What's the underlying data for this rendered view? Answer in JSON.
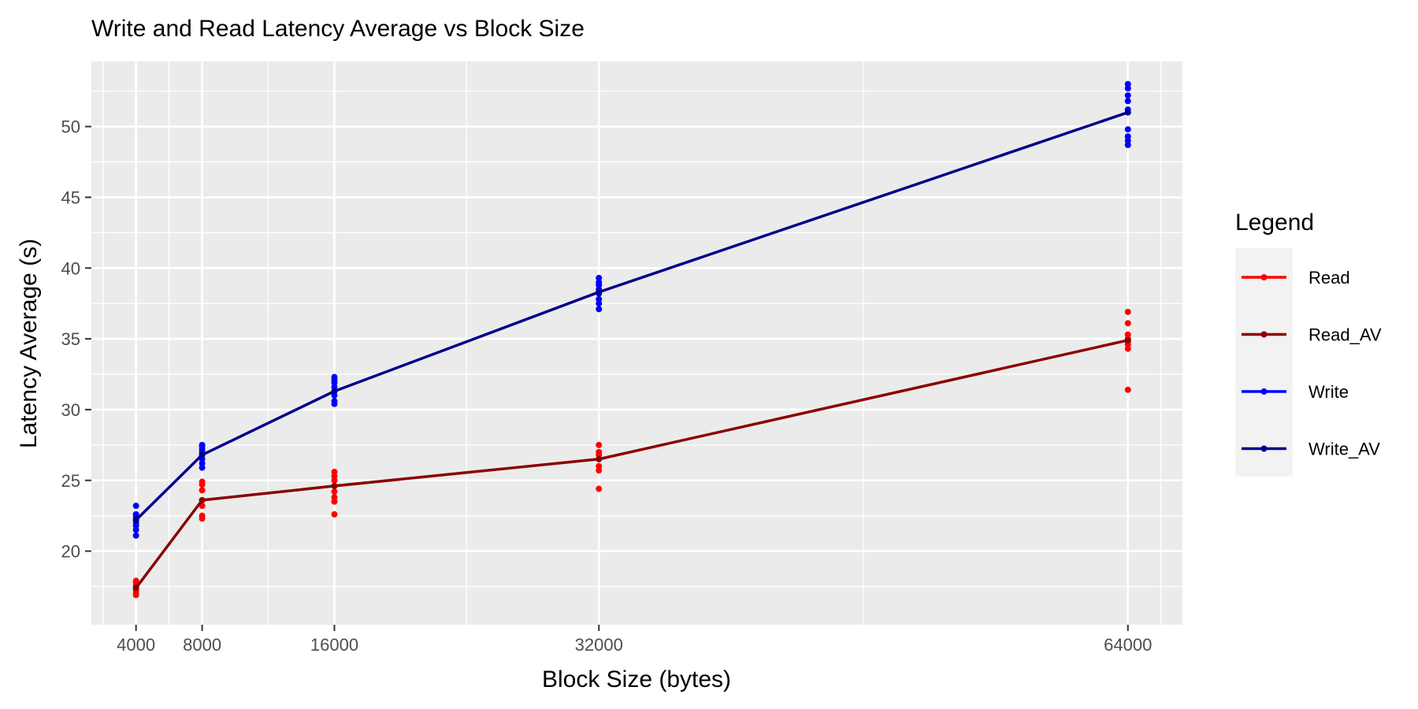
{
  "chart_data": {
    "type": "line",
    "title": "Write and Read Latency Average vs Block Size",
    "xlabel": "Block Size (bytes)",
    "ylabel": "Latency Average (s)",
    "xlim": [
      1300,
      67300
    ],
    "ylim": [
      14.8,
      54.6
    ],
    "x_ticks": [
      4000,
      8000,
      16000,
      32000,
      64000
    ],
    "x_minor": [
      6000,
      12000,
      24000,
      48000
    ],
    "y_ticks": [
      20,
      25,
      30,
      35,
      40,
      45,
      50
    ],
    "grid": true,
    "legend": {
      "title": "Legend",
      "position": "right",
      "entries": [
        {
          "label": "Read",
          "color": "#ff0000"
        },
        {
          "label": "Read_AV",
          "color": "#8b0000"
        },
        {
          "label": "Write",
          "color": "#0000ff"
        },
        {
          "label": "Write_AV",
          "color": "#00008b"
        }
      ]
    },
    "series": [
      {
        "name": "Read",
        "kind": "points",
        "color": "#ff0000",
        "points": [
          {
            "x": 4000,
            "ys": [
              16.9,
              17.1,
              17.3,
              17.5,
              17.6,
              17.8,
              17.9
            ]
          },
          {
            "x": 8000,
            "ys": [
              22.3,
              22.5,
              23.2,
              23.6,
              24.3,
              24.7,
              24.9
            ]
          },
          {
            "x": 16000,
            "ys": [
              22.6,
              23.5,
              23.8,
              24.2,
              24.6,
              25.0,
              25.3,
              25.6
            ]
          },
          {
            "x": 32000,
            "ys": [
              24.4,
              25.7,
              26.0,
              26.5,
              26.8,
              27.0,
              27.5
            ]
          },
          {
            "x": 64000,
            "ys": [
              31.4,
              34.3,
              34.6,
              34.8,
              35.0,
              35.3,
              36.1,
              36.9
            ]
          }
        ]
      },
      {
        "name": "Read_AV",
        "kind": "line",
        "color": "#8b0000",
        "x": [
          4000,
          8000,
          16000,
          32000,
          64000
        ],
        "y": [
          17.4,
          23.6,
          24.6,
          26.5,
          34.9
        ]
      },
      {
        "name": "Write",
        "kind": "points",
        "color": "#0000ff",
        "points": [
          {
            "x": 4000,
            "ys": [
              21.1,
              21.5,
              21.8,
              22.0,
              22.2,
              22.4,
              22.6,
              23.2
            ]
          },
          {
            "x": 8000,
            "ys": [
              25.9,
              26.2,
              26.5,
              26.8,
              27.0,
              27.2,
              27.4,
              27.5
            ]
          },
          {
            "x": 16000,
            "ys": [
              30.4,
              30.6,
              31.0,
              31.3,
              31.6,
              31.9,
              32.1,
              32.3
            ]
          },
          {
            "x": 32000,
            "ys": [
              37.1,
              37.5,
              37.8,
              38.2,
              38.5,
              38.8,
              39.0,
              39.3
            ]
          },
          {
            "x": 64000,
            "ys": [
              48.7,
              49.0,
              49.3,
              49.8,
              51.0,
              51.2,
              51.8,
              52.2,
              52.7,
              53.0
            ]
          }
        ]
      },
      {
        "name": "Write_AV",
        "kind": "line",
        "color": "#00008b",
        "x": [
          4000,
          8000,
          16000,
          32000,
          64000
        ],
        "y": [
          22.2,
          26.8,
          31.3,
          38.3,
          51.0
        ]
      }
    ]
  }
}
